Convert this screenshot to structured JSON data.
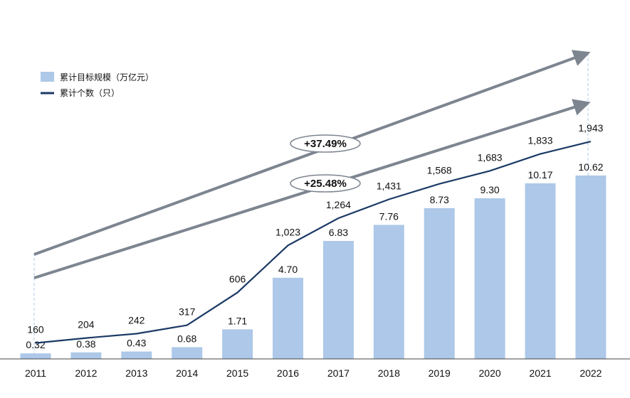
{
  "chart_data": {
    "type": "bar",
    "categories": [
      "2011",
      "2012",
      "2013",
      "2014",
      "2015",
      "2016",
      "2017",
      "2018",
      "2019",
      "2020",
      "2021",
      "2022"
    ],
    "series": [
      {
        "name": "累计目标规模（万亿元）",
        "type": "bar",
        "color": "#adc8e8",
        "values": [
          0.32,
          0.38,
          0.43,
          0.68,
          1.71,
          4.7,
          6.83,
          7.76,
          8.73,
          9.3,
          10.17,
          10.62
        ],
        "labels": [
          "0.32",
          "0.38",
          "0.43",
          "0.68",
          "1.71",
          "4.70",
          "6.83",
          "7.76",
          "8.73",
          "9.30",
          "10.17",
          "10.62"
        ]
      },
      {
        "name": "累计个数（只）",
        "type": "line",
        "color": "#1b3a66",
        "values": [
          160,
          204,
          242,
          317,
          606,
          1023,
          1264,
          1431,
          1568,
          1683,
          1833,
          1943
        ],
        "labels": [
          "160",
          "204",
          "242",
          "317",
          "606",
          "1,023",
          "1,264",
          "1,431",
          "1,568",
          "1,683",
          "1,833",
          "1,943"
        ]
      }
    ],
    "annotations": [
      {
        "text": "+37.49%",
        "color": "#7d8590"
      },
      {
        "text": "+25.48%",
        "color": "#7d8590"
      }
    ],
    "grid": false,
    "legend": "top-left"
  }
}
